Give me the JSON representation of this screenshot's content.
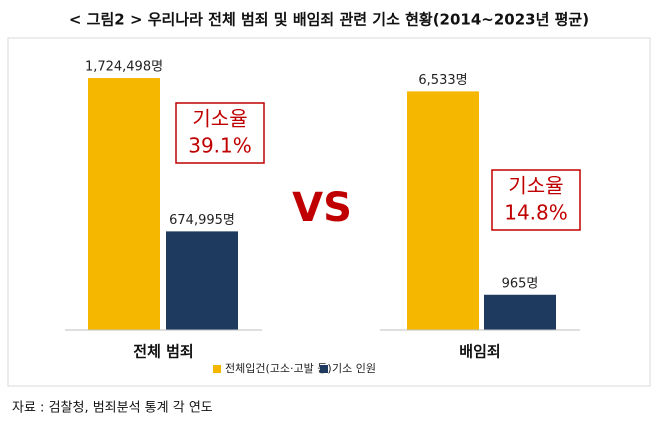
{
  "chart_data": {
    "title": "< 그림2 > 우리나라 전체 범죄 및 배임죄 관련 기소 현황(2014~2023년 평균)",
    "legend": [
      {
        "name": "전체입건(고소·고발 등)",
        "color": "#F5B700"
      },
      {
        "name": "기소 인원",
        "color": "#1F3A5F"
      }
    ],
    "vs": "VS",
    "source": "자료 : 검찰청, 범죄분석 통계 각 연도",
    "panels": [
      {
        "type": "bar",
        "category": "전체 범죄",
        "values": [
          1724498,
          674995
        ],
        "value_labels": [
          "1,724,498명",
          "674,995명"
        ],
        "ylim": [
          0,
          1800000
        ],
        "annotation": [
          "기소율",
          "39.1%"
        ]
      },
      {
        "type": "bar",
        "category": "배임죄",
        "values": [
          6533,
          965
        ],
        "value_labels": [
          "6,533명",
          "965명"
        ],
        "ylim": [
          0,
          7200
        ],
        "annotation": [
          "기소율",
          "14.8%"
        ]
      }
    ]
  }
}
